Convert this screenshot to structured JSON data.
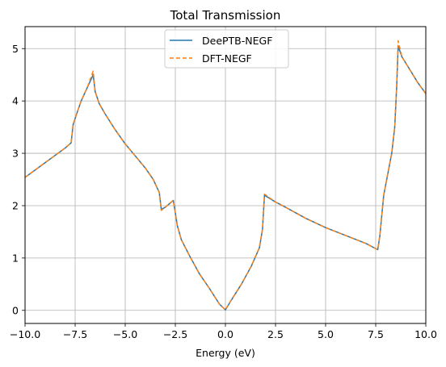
{
  "chart_data": {
    "type": "line",
    "title": "Total Transmission",
    "xlabel": "Energy (eV)",
    "ylabel": "",
    "xlim": [
      -10,
      10
    ],
    "ylim": [
      -0.25,
      5.42
    ],
    "grid": true,
    "legend_position": "top-center",
    "x_ticks": [
      -10,
      -7.5,
      -5,
      -2.5,
      0,
      2.5,
      5,
      7.5,
      10
    ],
    "x_tick_labels": [
      "−10.0",
      "−7.5",
      "−5.0",
      "−2.5",
      "0.0",
      "2.5",
      "5.0",
      "7.5",
      "10.0"
    ],
    "y_ticks": [
      0,
      1,
      2,
      3,
      4,
      5
    ],
    "y_tick_labels": [
      "0",
      "1",
      "2",
      "3",
      "4",
      "5"
    ],
    "series": [
      {
        "name": "DeePTB-NEGF",
        "color": "#1f77b4",
        "style": "solid",
        "points": [
          [
            -10,
            2.54
          ],
          [
            -9,
            2.82
          ],
          [
            -8,
            3.1
          ],
          [
            -7.7,
            3.2
          ],
          [
            -7.6,
            3.55
          ],
          [
            -7.4,
            3.78
          ],
          [
            -7.2,
            4.0
          ],
          [
            -6.9,
            4.25
          ],
          [
            -6.6,
            4.5
          ],
          [
            -6.5,
            4.18
          ],
          [
            -6.3,
            3.95
          ],
          [
            -6,
            3.75
          ],
          [
            -5.5,
            3.45
          ],
          [
            -5,
            3.18
          ],
          [
            -4.5,
            2.95
          ],
          [
            -4,
            2.72
          ],
          [
            -3.6,
            2.5
          ],
          [
            -3.3,
            2.25
          ],
          [
            -3.2,
            1.93
          ],
          [
            -3,
            1.97
          ],
          [
            -2.6,
            2.1
          ],
          [
            -2.4,
            1.62
          ],
          [
            -2.2,
            1.35
          ],
          [
            -1.8,
            1.05
          ],
          [
            -1.3,
            0.7
          ],
          [
            -0.8,
            0.42
          ],
          [
            -0.3,
            0.12
          ],
          [
            0,
            0.01
          ],
          [
            0.3,
            0.2
          ],
          [
            0.8,
            0.5
          ],
          [
            1.3,
            0.85
          ],
          [
            1.7,
            1.2
          ],
          [
            1.85,
            1.55
          ],
          [
            1.95,
            2.2
          ],
          [
            2.5,
            2.07
          ],
          [
            3,
            1.97
          ],
          [
            4,
            1.76
          ],
          [
            5,
            1.58
          ],
          [
            6,
            1.43
          ],
          [
            7,
            1.28
          ],
          [
            7.6,
            1.16
          ],
          [
            7.7,
            1.4
          ],
          [
            7.9,
            2.2
          ],
          [
            8.1,
            2.6
          ],
          [
            8.3,
            3.0
          ],
          [
            8.45,
            3.5
          ],
          [
            8.55,
            4.3
          ],
          [
            8.62,
            5.05
          ],
          [
            8.8,
            4.85
          ],
          [
            9.2,
            4.6
          ],
          [
            9.6,
            4.35
          ],
          [
            10,
            4.14
          ]
        ]
      },
      {
        "name": "DFT-NEGF",
        "color": "#ff7f0e",
        "style": "dashed",
        "points": [
          [
            -10,
            2.54
          ],
          [
            -9,
            2.82
          ],
          [
            -8,
            3.1
          ],
          [
            -7.7,
            3.2
          ],
          [
            -7.6,
            3.55
          ],
          [
            -7.4,
            3.78
          ],
          [
            -7.2,
            4.0
          ],
          [
            -6.9,
            4.25
          ],
          [
            -6.6,
            4.57
          ],
          [
            -6.5,
            4.18
          ],
          [
            -6.3,
            3.95
          ],
          [
            -6,
            3.75
          ],
          [
            -5.5,
            3.45
          ],
          [
            -5,
            3.18
          ],
          [
            -4.5,
            2.95
          ],
          [
            -4,
            2.72
          ],
          [
            -3.6,
            2.5
          ],
          [
            -3.3,
            2.25
          ],
          [
            -3.2,
            1.91
          ],
          [
            -3,
            1.97
          ],
          [
            -2.6,
            2.1
          ],
          [
            -2.4,
            1.62
          ],
          [
            -2.2,
            1.35
          ],
          [
            -1.8,
            1.05
          ],
          [
            -1.3,
            0.7
          ],
          [
            -0.8,
            0.42
          ],
          [
            -0.3,
            0.12
          ],
          [
            0,
            0.01
          ],
          [
            0.3,
            0.2
          ],
          [
            0.8,
            0.5
          ],
          [
            1.3,
            0.85
          ],
          [
            1.7,
            1.2
          ],
          [
            1.85,
            1.55
          ],
          [
            1.95,
            2.22
          ],
          [
            2.5,
            2.07
          ],
          [
            3,
            1.97
          ],
          [
            4,
            1.76
          ],
          [
            5,
            1.58
          ],
          [
            6,
            1.43
          ],
          [
            7,
            1.28
          ],
          [
            7.6,
            1.16
          ],
          [
            7.7,
            1.4
          ],
          [
            7.9,
            2.2
          ],
          [
            8.1,
            2.6
          ],
          [
            8.3,
            3.0
          ],
          [
            8.45,
            3.5
          ],
          [
            8.55,
            4.3
          ],
          [
            8.62,
            5.15
          ],
          [
            8.8,
            4.85
          ],
          [
            9.2,
            4.6
          ],
          [
            9.6,
            4.35
          ],
          [
            10,
            4.14
          ]
        ]
      }
    ]
  }
}
